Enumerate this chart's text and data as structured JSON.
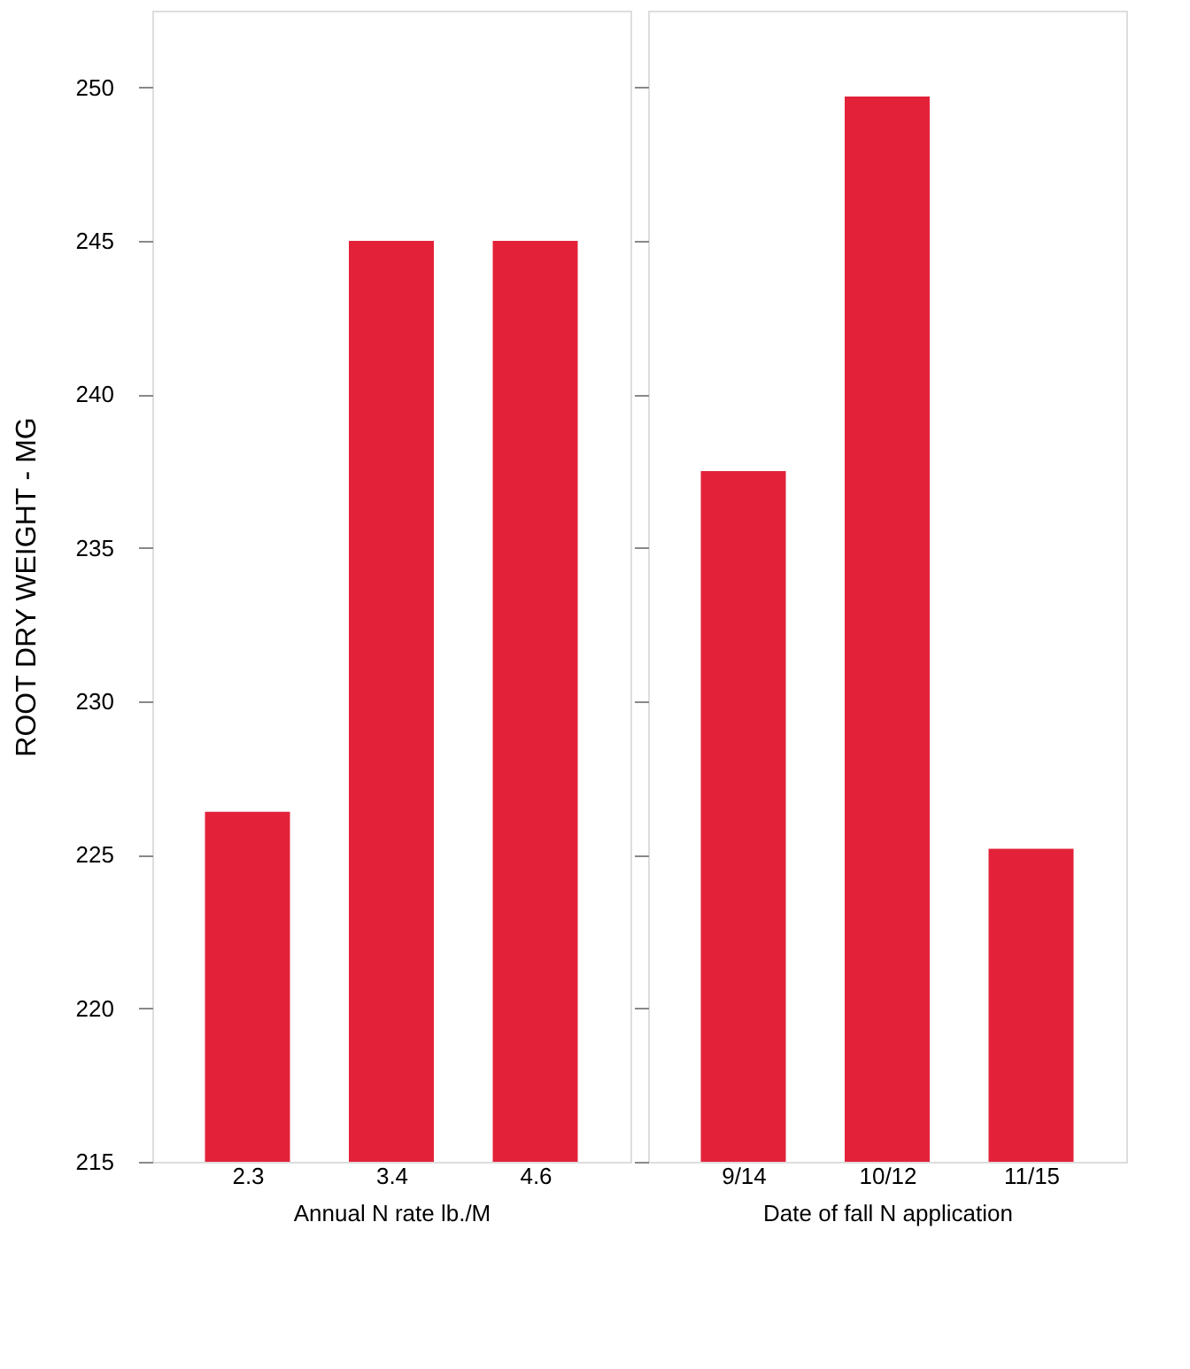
{
  "chart_data": [
    {
      "type": "bar",
      "ylabel": "ROOT DRY WEIGHT - MG",
      "xlabel": "Annual N rate lb./M",
      "categories": [
        "2.3",
        "3.4",
        "4.6"
      ],
      "values": [
        226.4,
        245.0,
        245.0
      ],
      "color": "#e3223a",
      "ylim": [
        215,
        252.5
      ],
      "yticks": [
        215,
        220,
        225,
        230,
        235,
        240,
        245,
        250
      ],
      "grid": false
    },
    {
      "type": "bar",
      "xlabel": "Date of fall N application",
      "categories": [
        "9/14",
        "10/12",
        "11/15"
      ],
      "values": [
        237.5,
        249.7,
        225.2
      ],
      "color": "#e3223a",
      "ylim": [
        215,
        252.5
      ],
      "yticks": [
        215,
        220,
        225,
        230,
        235,
        240,
        245,
        250
      ],
      "grid": false,
      "tick_labels": "x"
    }
  ]
}
